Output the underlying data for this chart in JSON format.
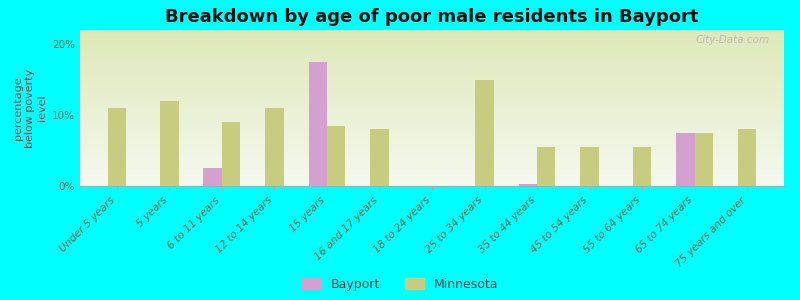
{
  "title": "Breakdown by age of poor male residents in Bayport",
  "ylabel": "percentage\nbelow poverty\nlevel",
  "background_color": "#00FFFF",
  "plot_bg_top": "#dde8b8",
  "plot_bg_bottom": "#f5f8ee",
  "categories": [
    "Under 5 years",
    "5 years",
    "6 to 11 years",
    "12 to 14 years",
    "15 years",
    "16 and 17 years",
    "18 to 24 years",
    "25 to 34 years",
    "35 to 44 years",
    "45 to 54 years",
    "55 to 64 years",
    "65 to 74 years",
    "75 years and over"
  ],
  "bayport_values": [
    null,
    null,
    2.5,
    null,
    17.5,
    null,
    null,
    null,
    0.3,
    null,
    null,
    7.5,
    null
  ],
  "minnesota_values": [
    11.0,
    12.0,
    9.0,
    11.0,
    8.5,
    8.0,
    null,
    15.0,
    5.5,
    5.5,
    5.5,
    7.5,
    8.0
  ],
  "bayport_color": "#d4a0d0",
  "minnesota_color": "#c8cc80",
  "bar_width": 0.35,
  "ylim": [
    0,
    22
  ],
  "yticks": [
    0,
    10,
    20
  ],
  "ytick_labels": [
    "0%",
    "10%",
    "20%"
  ],
  "title_fontsize": 13,
  "axis_label_fontsize": 8,
  "tick_label_fontsize": 7.5,
  "legend_fontsize": 9,
  "watermark": "City-Data.com"
}
